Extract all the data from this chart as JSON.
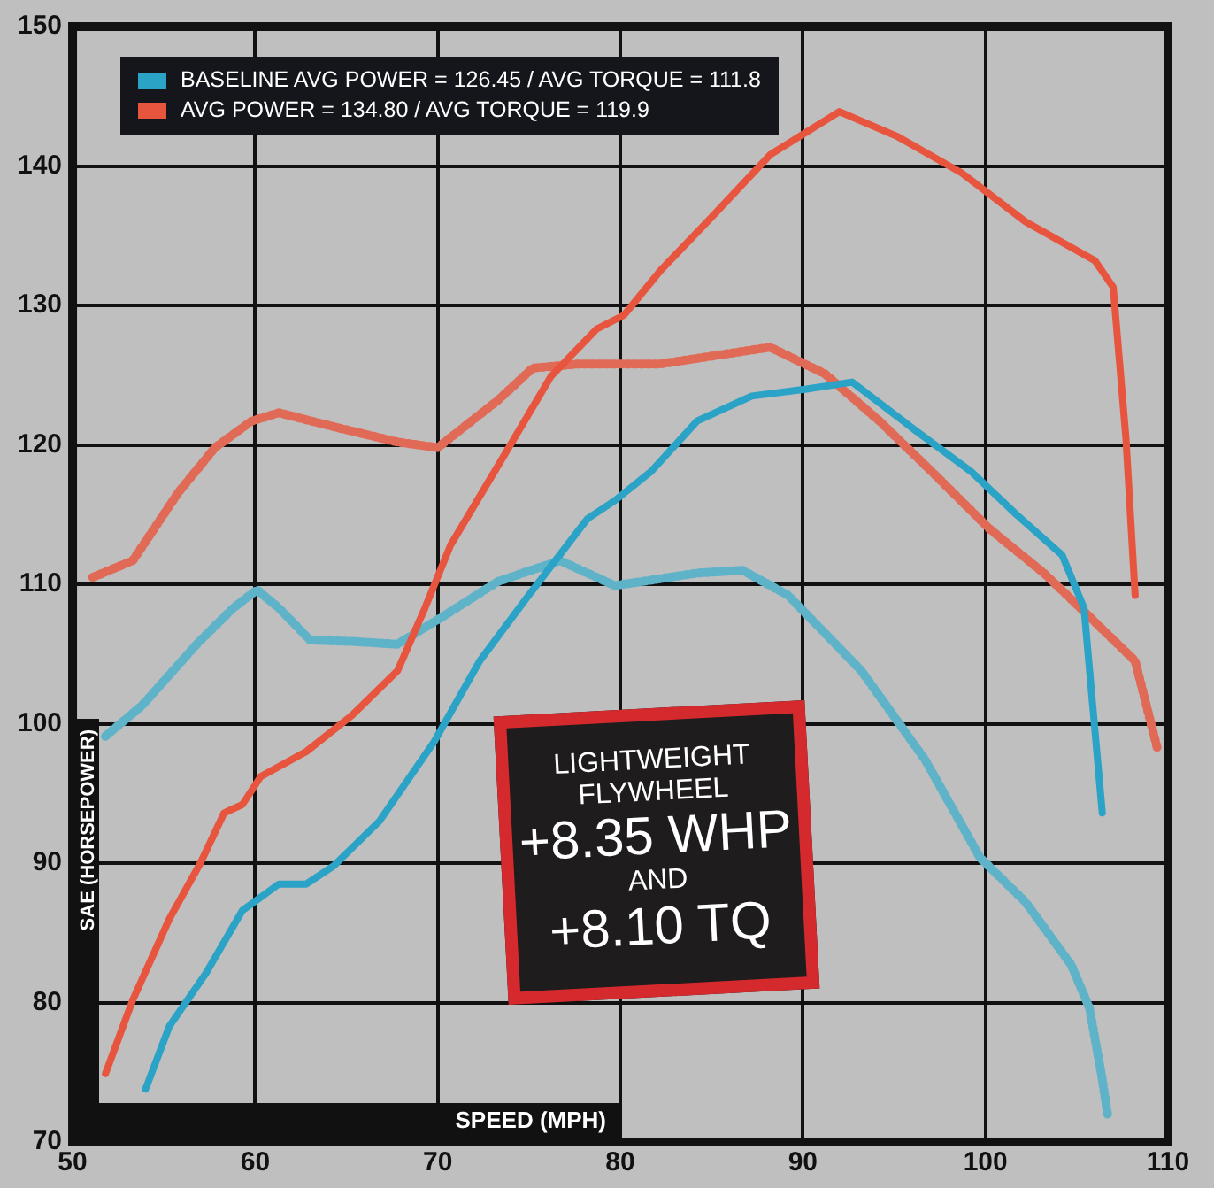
{
  "chart_data": {
    "type": "line",
    "xlabel": "SPEED (MPH)",
    "ylabel": "SAE (HORSEPOWER)",
    "xlim": [
      50,
      110
    ],
    "xticks": [
      50,
      60,
      70,
      80,
      90,
      100,
      110
    ],
    "ylim": [
      70,
      150
    ],
    "yticks": [
      70,
      80,
      90,
      100,
      110,
      120,
      130,
      140,
      150
    ],
    "grid": true,
    "legend": "top left",
    "marker": "none",
    "annotations": [
      "LIGHTWEIGHT FLYWHEEL",
      "+8.35 WHP",
      "AND",
      "+8.10 TQ"
    ],
    "series": [
      {
        "name": "BASELINE AVG POWER = 126.45 / AVG TORQUE = 111.8",
        "color": "#2aa3c6",
        "line_style": "solid",
        "x": [
          54,
          55.3,
          57.3,
          59.3,
          61.3,
          62.8,
          64.3,
          66.8,
          69.8,
          72.3,
          74.8,
          78.2,
          79.7,
          81.7,
          84.2,
          87.2,
          90.2,
          92.7,
          96.2,
          99.2,
          101.7,
          104.2,
          105.4,
          106.4
        ],
        "values": [
          73.8,
          78.3,
          82.1,
          86.6,
          88.5,
          88.5,
          89.8,
          93,
          98.7,
          104.5,
          108.9,
          114.7,
          116,
          118.1,
          121.7,
          123.5,
          124,
          124.5,
          121,
          118.1,
          115,
          112.1,
          108.3,
          93.6
        ]
      },
      {
        "name": "AVG POWER = 134.80 / AVG TORQUE = 119.9",
        "color": "#e8553f",
        "line_style": "solid",
        "x": [
          51.8,
          53.3,
          55.3,
          57,
          58.3,
          59.3,
          60.3,
          62.8,
          65.3,
          67.8,
          69.3,
          70.7,
          73.3,
          76.2,
          78.7,
          80.2,
          82.2,
          85.2,
          88.2,
          92,
          95.2,
          98.7,
          102.2,
          106,
          107,
          107.7,
          108.2
        ],
        "values": [
          74.9,
          80.2,
          86,
          90,
          93.6,
          94.2,
          96.2,
          98,
          100.6,
          103.8,
          108.3,
          112.8,
          118.5,
          124.9,
          128.3,
          129.3,
          132.5,
          136.6,
          140.8,
          143.9,
          142.1,
          139.5,
          136,
          133.2,
          131.3,
          120.4,
          109.2
        ]
      },
      {
        "color": "#5fb3c9",
        "line_style": "dotted",
        "x": [
          51.8,
          53.8,
          56.8,
          58.8,
          60.1,
          61.3,
          63,
          65.3,
          67.8,
          70.3,
          73.3,
          76.7,
          79.7,
          84.2,
          86.7,
          89.2,
          93.2,
          96.7,
          99.7,
          102.2,
          104.7,
          105.7,
          106.4,
          106.7
        ],
        "values": [
          99.1,
          101.3,
          105.7,
          108.3,
          109.6,
          108.3,
          106,
          105.9,
          105.7,
          107.7,
          110.2,
          111.7,
          109.9,
          110.8,
          111,
          109.2,
          103.8,
          97.4,
          90.4,
          87.2,
          82.7,
          79.6,
          74.5,
          71.9
        ]
      },
      {
        "color": "#e06a55",
        "line_style": "dotted",
        "x": [
          51.1,
          53.3,
          55.8,
          57.8,
          59.8,
          61.3,
          64.3,
          67.8,
          70,
          73.3,
          75.2,
          77.7,
          82.2,
          85.2,
          88.2,
          91.2,
          94.2,
          97.2,
          100.2,
          103.2,
          105.2,
          106.7,
          108.2,
          109.4
        ],
        "values": [
          110.5,
          111.7,
          116.6,
          119.8,
          121.7,
          122.3,
          121.3,
          120.2,
          119.8,
          123.2,
          125.5,
          125.8,
          125.8,
          126.4,
          127,
          125.1,
          121.7,
          117.9,
          114,
          110.8,
          108.3,
          106.4,
          104.5,
          98.3
        ]
      }
    ]
  }
}
